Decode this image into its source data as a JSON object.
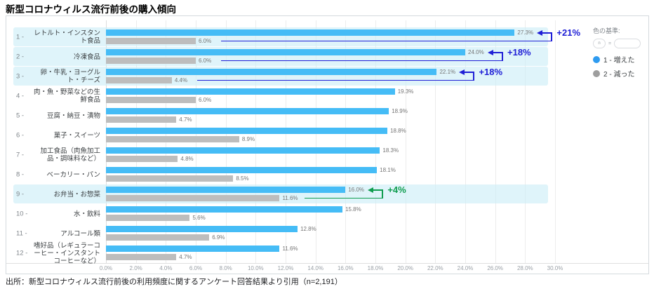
{
  "title": "新型コロナウィルス流行前後の購入傾向",
  "footer": "出所：新型コロナウィルス流行前後の利用頻度に関するアンケート回答結果より引用（n=2,191）",
  "legend": {
    "heading": "色の基準:",
    "chip1_label": "n",
    "chip_separator": "=",
    "chip2_label": "",
    "items": [
      {
        "label": "1 - 増えた",
        "color": "#2e9bf0"
      },
      {
        "label": "2 - 減った",
        "color": "#9e9e9e"
      }
    ]
  },
  "colors": {
    "bar_increase": "#45bcf6",
    "bar_decrease": "#bdbdbd",
    "highlight_band": "#ceeef7",
    "annotation_blue": "#1f1fd6",
    "annotation_green": "#0f9d4f"
  },
  "chart_data": {
    "type": "bar",
    "orientation": "horizontal",
    "title": "新型コロナウィルス流行前後の購入傾向",
    "xlim": [
      0,
      30
    ],
    "xticks": [
      "0.0%",
      "2.0%",
      "4.0%",
      "6.0%",
      "8.0%",
      "10.0%",
      "12.0%",
      "14.0%",
      "16.0%",
      "18.0%",
      "20.0%",
      "22.0%",
      "24.0%",
      "26.0%",
      "28.0%",
      "30.0%"
    ],
    "grid": true,
    "ranks": [
      "1 -",
      "2 -",
      "3 -",
      "4 -",
      "5 -",
      "6 -",
      "7 -",
      "8 -",
      "9 -",
      "10 -",
      "11 -",
      "12 -"
    ],
    "categories": [
      "レトルト・インスタント食品",
      "冷凍食品",
      "卵・牛乳・ヨーグルト・チーズ",
      "肉・魚・野菜などの生鮮食品",
      "豆腐・納豆・漬物",
      "菓子・スイーツ",
      "加工食品（肉魚加工品・調味料など）",
      "ベーカリー・パン",
      "お弁当・お惣菜",
      "水・飲料",
      "アルコール類",
      "嗜好品（レギュラーコーヒー・インスタントコーヒーなど）"
    ],
    "series": [
      {
        "name": "増えた",
        "values": [
          27.3,
          24.0,
          22.1,
          19.3,
          18.9,
          18.8,
          18.3,
          18.1,
          16.0,
          15.8,
          12.8,
          11.6
        ]
      },
      {
        "name": "減った",
        "values": [
          6.0,
          6.0,
          4.4,
          6.0,
          4.7,
          8.9,
          4.8,
          8.5,
          11.6,
          5.6,
          6.9,
          4.7
        ]
      }
    ],
    "highlighted_rows": [
      1,
      2,
      3,
      9
    ],
    "annotations": [
      {
        "row": 1,
        "text": "+21%",
        "color_key": "annotation_blue"
      },
      {
        "row": 2,
        "text": "+18%",
        "color_key": "annotation_blue"
      },
      {
        "row": 3,
        "text": "+18%",
        "color_key": "annotation_blue"
      },
      {
        "row": 9,
        "text": "+4%",
        "color_key": "annotation_green"
      }
    ]
  }
}
